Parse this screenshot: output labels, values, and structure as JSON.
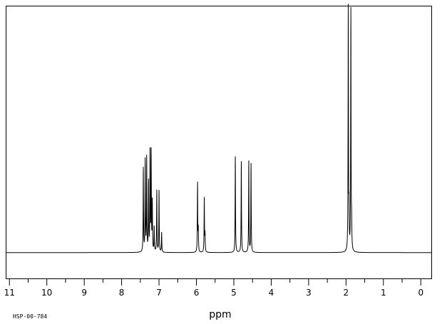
{
  "chart_data": {
    "type": "line",
    "xlabel": "ppm",
    "ylabel": "",
    "xlim": [
      11.1,
      -0.3
    ],
    "ylim": [
      -0.105,
      1.0
    ],
    "x_reversed": true,
    "grid": false,
    "spectrum_id": "HSP-00-784",
    "tick_labels": [
      "11",
      "10",
      "9",
      "8",
      "7",
      "6",
      "5",
      "4",
      "3",
      "2",
      "1",
      "0"
    ],
    "peaks": [
      {
        "ppm": 7.42,
        "height": 0.34
      },
      {
        "ppm": 7.37,
        "height": 0.37
      },
      {
        "ppm": 7.33,
        "height": 0.38
      },
      {
        "ppm": 7.28,
        "height": 0.28
      },
      {
        "ppm": 7.24,
        "height": 0.4
      },
      {
        "ppm": 7.21,
        "height": 0.4
      },
      {
        "ppm": 7.18,
        "height": 0.2
      },
      {
        "ppm": 7.13,
        "height": 0.1
      },
      {
        "ppm": 7.06,
        "height": 0.25
      },
      {
        "ppm": 7.0,
        "height": 0.25
      },
      {
        "ppm": 6.93,
        "height": 0.08
      },
      {
        "ppm": 5.97,
        "height": 0.28
      },
      {
        "ppm": 5.95,
        "height": 0.09
      },
      {
        "ppm": 5.79,
        "height": 0.22
      },
      {
        "ppm": 5.77,
        "height": 0.07
      },
      {
        "ppm": 4.96,
        "height": 0.39
      },
      {
        "ppm": 4.8,
        "height": 0.37
      },
      {
        "ppm": 4.6,
        "height": 0.37
      },
      {
        "ppm": 4.54,
        "height": 0.36
      },
      {
        "ppm": 1.94,
        "height": 0.99
      },
      {
        "ppm": 1.92,
        "height": 0.15
      },
      {
        "ppm": 1.87,
        "height": 0.98
      },
      {
        "ppm": 1.85,
        "height": 0.1
      }
    ]
  }
}
